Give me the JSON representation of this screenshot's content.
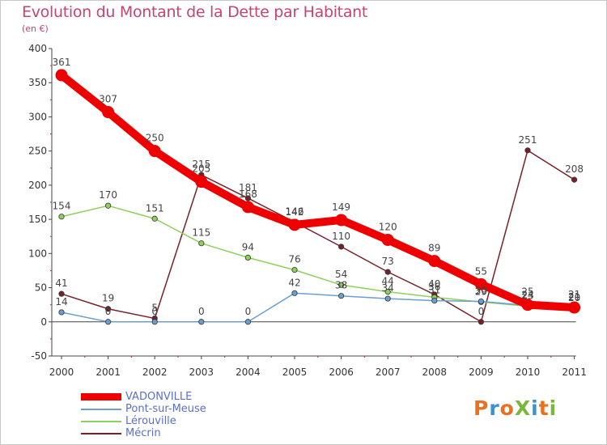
{
  "title": "Evolution du Montant de la Dette par Habitant",
  "subtitle": "(en €)",
  "logo": {
    "text": "ProXiti",
    "colors": [
      "#e87020",
      "#3a90d0",
      "#e87020",
      "#7ab83a",
      "#3a90d0",
      "#e87020",
      "#7ab83a"
    ]
  },
  "chart_data": {
    "type": "line",
    "title": "Evolution du Montant de la Dette par Habitant",
    "ylabel": "(en €)",
    "xlabel": "",
    "x": [
      "2000",
      "2001",
      "2002",
      "2003",
      "2004",
      "2005",
      "2006",
      "2007",
      "2008",
      "2009",
      "2010",
      "2011"
    ],
    "ylim": [
      -50,
      400
    ],
    "yticks": [
      "-50",
      "0",
      "50",
      "100",
      "150",
      "200",
      "250",
      "300",
      "350",
      "400"
    ],
    "grid": false,
    "legend_position": "bottom-left",
    "series": [
      {
        "name": "Mécrin",
        "color": "#7a1f28",
        "values": [
          41,
          19,
          5,
          215,
          181,
          146,
          110,
          73,
          40,
          0,
          251,
          208
        ],
        "labels": [
          "41",
          "19",
          "5",
          "215",
          "181",
          "146",
          "110",
          "73",
          "40",
          "0",
          "251",
          "208"
        ]
      },
      {
        "name": "Lérouville",
        "color": "#8ed15a",
        "values": [
          154,
          170,
          151,
          115,
          94,
          76,
          54,
          44,
          36,
          29,
          23,
          20
        ],
        "labels": [
          "154",
          "170",
          "151",
          "115",
          "94",
          "76",
          "54",
          "44",
          "36",
          "29",
          "23",
          "20"
        ]
      },
      {
        "name": "Pont-sur-Meuse",
        "color": "#6a9fd0",
        "values": [
          14,
          0,
          0,
          0,
          0,
          42,
          38,
          34,
          31,
          30,
          24,
          21
        ],
        "labels": [
          "14",
          "0",
          "0",
          "0",
          "0",
          "42",
          "38",
          "34",
          "31",
          "30",
          "24",
          "21"
        ]
      },
      {
        "name": "VADONVILLE",
        "color": "#ee0000",
        "values": [
          361,
          307,
          250,
          205,
          168,
          142,
          149,
          120,
          89,
          55,
          25,
          21
        ],
        "labels": [
          "361",
          "307",
          "250",
          "205",
          "168",
          "142",
          "149",
          "120",
          "89",
          "55",
          "25",
          "21"
        ]
      }
    ]
  }
}
